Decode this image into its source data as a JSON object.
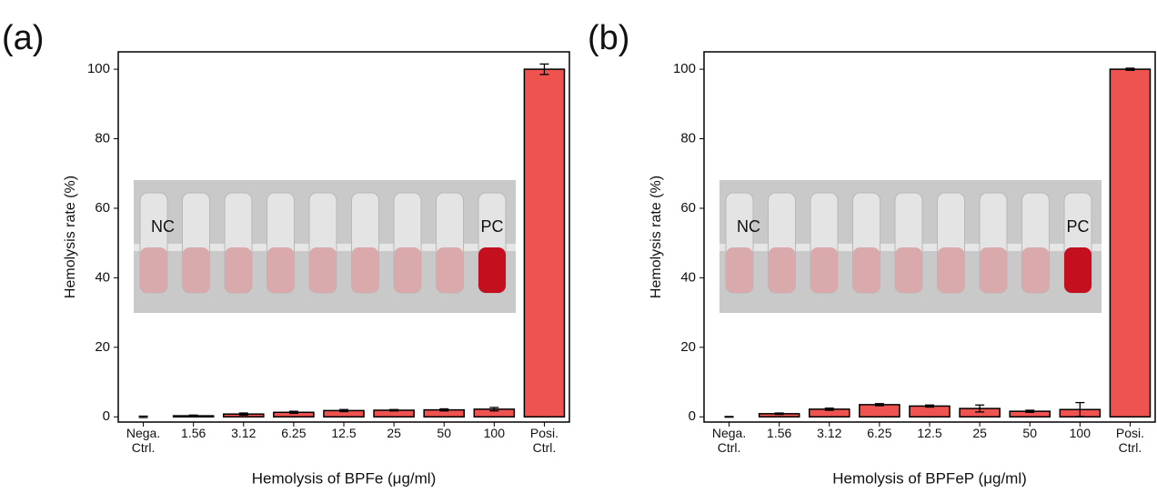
{
  "chart_data": [
    {
      "type": "bar",
      "panel_label": "(a)",
      "x_label": "Hemolysis of BPFe (μg/ml)",
      "y_label": "Hemolysis rate (%)",
      "categories": [
        "Nega.\nCtrl.",
        "1.56",
        "3.12",
        "6.25",
        "12.5",
        "25",
        "50",
        "100",
        "Posi.\nCtrl."
      ],
      "values": [
        0,
        0.3,
        0.8,
        1.3,
        1.8,
        1.9,
        2.0,
        2.2,
        100
      ],
      "errors": [
        0.2,
        0.2,
        0.3,
        0.3,
        0.3,
        0.2,
        0.3,
        0.5,
        1.5
      ],
      "color": "#ef5350",
      "ylim": [
        -1.5,
        105
      ],
      "yticks": [
        0,
        20,
        40,
        60,
        80,
        100
      ],
      "inset_labels": [
        "NC",
        "PC"
      ]
    },
    {
      "type": "bar",
      "panel_label": "(b)",
      "x_label": "Hemolysis of BPFeP (μg/ml)",
      "y_label": "Hemolysis rate (%)",
      "categories": [
        "Nega.\nCtrl.",
        "1.56",
        "3.12",
        "6.25",
        "12.5",
        "25",
        "50",
        "100",
        "Posi.\nCtrl."
      ],
      "values": [
        0,
        0.9,
        2.2,
        3.5,
        3.1,
        2.4,
        1.6,
        2.1,
        100
      ],
      "errors": [
        0.1,
        0.2,
        0.3,
        0.3,
        0.3,
        1.0,
        0.3,
        2.0,
        0.3
      ],
      "color": "#ef5350",
      "ylim": [
        -1.5,
        105
      ],
      "yticks": [
        0,
        20,
        40,
        60,
        80,
        100
      ],
      "inset_labels": [
        "NC",
        "PC"
      ]
    }
  ]
}
